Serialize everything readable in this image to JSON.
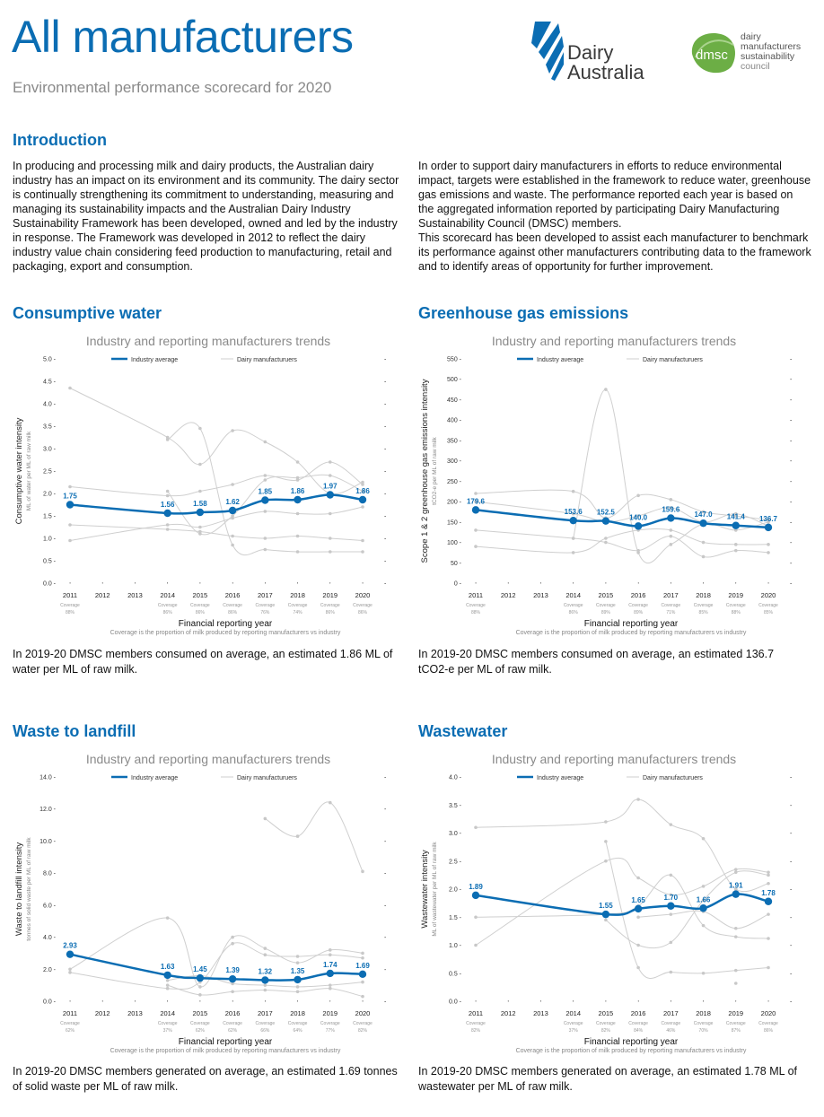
{
  "header": {
    "title": "All manufacturers",
    "subtitle": "Environmental performance scorecard for 2020"
  },
  "logos": {
    "dairy_australia_line1": "Dairy",
    "dairy_australia_line2": "Australia",
    "dmsc_badge": "dmsc",
    "dmsc_line1": "dairy",
    "dmsc_line2": "manufacturers",
    "dmsc_line3": "sustainability",
    "dmsc_line4": "council"
  },
  "intro": {
    "heading": "Introduction",
    "left": "In producing and processing milk and dairy products, the Australian dairy industry has an impact on its environment and its community. The dairy sector is continually strengthening its commitment to understanding, measuring and managing its sustainability impacts and the Australian Dairy Industry Sustainability Framework has been developed, owned and led by the industry in response. The Framework was developed in 2012 to reflect the dairy industry value chain considering feed production to manufacturing, retail and packaging, export and consumption.",
    "right1": "In order to support dairy manufacturers in efforts to reduce environmental impact, targets were established in the framework to reduce water, greenhouse gas emissions and waste. The performance reported each year is based on the aggregated information reported by participating Dairy Manufacturing Sustainability Council (DMSC) members.",
    "right2": "This scorecard has been developed to assist each manufacturer to benchmark its performance against other manufacturers contributing data to the framework and to identify areas of opportunity for further improvement."
  },
  "common": {
    "chart_title": "Industry and reporting manufacturers trends",
    "legend_avg": "Industry average",
    "legend_mfr": "Dairy manufacturuers",
    "xlabel": "Financial reporting year",
    "coverage_word": "Coverage",
    "coverage_note": "Coverage is the proportion of milk produced by reporting manufacturers vs industry",
    "avg_color": "#0b6db3",
    "mfr_color": "#cfcfcf"
  },
  "sections": {
    "water": {
      "heading": "Consumptive water",
      "description": "In 2019-20 DMSC members consumed on average, an estimated 1.86 ML of water per ML of raw milk."
    },
    "ghg": {
      "heading": "Greenhouse gas emissions",
      "description": "In 2019-20 DMSC members consumed on average, an estimated 136.7 tCO2-e per ML of raw milk."
    },
    "waste": {
      "heading": "Waste to landfill",
      "description": "In 2019-20 DMSC members generated on average, an estimated 1.69 tonnes of solid waste per ML of raw milk."
    },
    "wastewater": {
      "heading": "Wastewater",
      "description": "In 2019-20 DMSC members generated on average, an estimated 1.78 ML of wastewater per ML of raw milk."
    }
  },
  "chart_data": [
    {
      "id": "water",
      "type": "line",
      "title": "Industry and reporting manufacturers trends",
      "ylabel": "Consumptive water intensity",
      "ylabel2": "ML of water per ML of raw milk",
      "xlabel": "Financial reporting year",
      "ylim": [
        0,
        5
      ],
      "yticks": [
        0,
        0.5,
        1,
        1.5,
        2,
        2.5,
        3,
        3.5,
        4,
        4.5,
        5
      ],
      "ytick_labels": [
        "0.0",
        "0.5",
        "1.0",
        "1.5",
        "2.0",
        "2.5",
        "3.0",
        "3.5",
        "4.0",
        "4.5",
        "5.0"
      ],
      "x": [
        "2011",
        "2012",
        "2013",
        "2014",
        "2015",
        "2016",
        "2017",
        "2018",
        "2019",
        "2020"
      ],
      "coverage": [
        "88%",
        "",
        "",
        "86%",
        "86%",
        "86%",
        "76%",
        "74%",
        "86%",
        "86%"
      ],
      "average": {
        "name": "Industry average",
        "x_idx": [
          0,
          3,
          4,
          5,
          6,
          7,
          8,
          9
        ],
        "values": [
          1.75,
          1.56,
          1.58,
          1.62,
          1.85,
          1.86,
          1.97,
          1.86
        ],
        "labels": [
          "1.75",
          "1.56",
          "1.58",
          "1.62",
          "1.85",
          "1.86",
          "1.97",
          "1.86"
        ]
      },
      "manufacturers": [
        {
          "x_idx": [
            0,
            3,
            4,
            5,
            6,
            7,
            8,
            9
          ],
          "values": [
            4.35,
            3.25,
            2.65,
            3.4,
            3.15,
            2.7,
            2.0,
            2.25
          ]
        },
        {
          "x_idx": [
            3,
            4,
            5,
            6,
            7,
            8,
            9
          ],
          "values": [
            3.2,
            3.45,
            0.85,
            0.75,
            0.7,
            0.7,
            0.7
          ]
        },
        {
          "x_idx": [
            0,
            3,
            4,
            5,
            6,
            7,
            8,
            9
          ],
          "values": [
            2.15,
            1.95,
            2.05,
            2.2,
            2.4,
            2.3,
            2.7,
            2.2
          ]
        },
        {
          "x_idx": [
            0,
            3,
            4,
            5,
            6,
            7,
            8,
            9
          ],
          "values": [
            1.3,
            1.2,
            1.15,
            1.05,
            1.0,
            1.05,
            1.0,
            0.95
          ]
        },
        {
          "x_idx": [
            0,
            3,
            4,
            5,
            6,
            7,
            8,
            9
          ],
          "values": [
            0.95,
            1.3,
            1.25,
            1.45,
            1.6,
            1.55,
            1.55,
            1.7
          ]
        },
        {
          "x_idx": [
            3,
            4,
            5,
            6,
            7,
            8,
            9
          ],
          "values": [
            2.05,
            1.1,
            1.5,
            2.3,
            2.35,
            2.4,
            2.05
          ]
        }
      ]
    },
    {
      "id": "ghg",
      "type": "line",
      "title": "Industry and reporting manufacturers trends",
      "ylabel": "Scope 1 & 2 greenhouse gas emissions intensity",
      "ylabel2": "tCO2-e per ML of raw milk",
      "xlabel": "Financial reporting year",
      "ylim": [
        0,
        550
      ],
      "yticks": [
        0,
        50,
        100,
        150,
        200,
        250,
        300,
        350,
        400,
        450,
        500,
        550
      ],
      "ytick_labels": [
        "0",
        "50",
        "100",
        "150",
        "200",
        "250",
        "300",
        "350",
        "400",
        "450",
        "500",
        "550"
      ],
      "x": [
        "2011",
        "2012",
        "2013",
        "2014",
        "2015",
        "2016",
        "2017",
        "2018",
        "2019",
        "2020"
      ],
      "coverage": [
        "88%",
        "",
        "",
        "86%",
        "89%",
        "89%",
        "71%",
        "85%",
        "88%",
        "85%"
      ],
      "average": {
        "name": "Industry average",
        "x_idx": [
          0,
          3,
          4,
          5,
          6,
          7,
          8,
          9
        ],
        "values": [
          179.6,
          153.6,
          152.5,
          140.0,
          159.6,
          147.0,
          141.4,
          136.7
        ],
        "labels": [
          "179.6",
          "153.6",
          "152.5",
          "140.0",
          "159.6",
          "147.0",
          "141.4",
          "136.7"
        ]
      },
      "manufacturers": [
        {
          "x_idx": [
            3,
            4,
            5,
            6,
            7,
            8,
            9
          ],
          "values": [
            110,
            475,
            75,
            95,
            145,
            130,
            150
          ]
        },
        {
          "x_idx": [
            0,
            3,
            4,
            5,
            6,
            7,
            8,
            9
          ],
          "values": [
            220,
            225,
            160,
            215,
            205,
            175,
            165,
            155
          ]
        },
        {
          "x_idx": [
            0,
            3,
            4,
            5,
            6,
            7,
            8,
            9
          ],
          "values": [
            90,
            75,
            110,
            130,
            130,
            100,
            95,
            95
          ]
        },
        {
          "x_idx": [
            0,
            3,
            4,
            5,
            6,
            7,
            8,
            9
          ],
          "values": [
            130,
            110,
            100,
            80,
            115,
            65,
            80,
            75
          ]
        },
        {
          "x_idx": [
            0,
            3,
            4,
            5,
            6,
            7,
            8,
            9
          ],
          "values": [
            200,
            170,
            150,
            165,
            185,
            150,
            170,
            140
          ]
        }
      ]
    },
    {
      "id": "waste",
      "type": "line",
      "title": "Industry and reporting manufacturers trends",
      "ylabel": "Waste to landfill intensity",
      "ylabel2": "tonnes of solid waste per ML of raw milk",
      "xlabel": "Financial reporting year",
      "ylim": [
        0,
        14
      ],
      "yticks": [
        0,
        2,
        4,
        6,
        8,
        10,
        12,
        14
      ],
      "ytick_labels": [
        "0.0",
        "2.0",
        "4.0",
        "6.0",
        "8.0",
        "10.0",
        "12.0",
        "14.0"
      ],
      "x": [
        "2011",
        "2012",
        "2013",
        "2014",
        "2015",
        "2016",
        "2017",
        "2018",
        "2019",
        "2020"
      ],
      "coverage": [
        "62%",
        "",
        "",
        "37%",
        "62%",
        "62%",
        "66%",
        "64%",
        "77%",
        "82%"
      ],
      "average": {
        "name": "Industry average",
        "x_idx": [
          0,
          3,
          4,
          5,
          6,
          7,
          8,
          9
        ],
        "values": [
          2.93,
          1.63,
          1.45,
          1.39,
          1.32,
          1.35,
          1.74,
          1.69
        ],
        "labels": [
          "2.93",
          "1.63",
          "1.45",
          "1.39",
          "1.32",
          "1.35",
          "1.74",
          "1.69"
        ]
      },
      "manufacturers": [
        {
          "x_idx": [
            6,
            7,
            8,
            9
          ],
          "values": [
            11.4,
            10.3,
            12.4,
            8.1
          ]
        },
        {
          "x_idx": [
            0,
            3,
            4,
            5,
            6,
            7,
            8,
            9
          ],
          "values": [
            2.0,
            5.2,
            0.9,
            4.0,
            3.3,
            2.4,
            3.2,
            3.0
          ]
        },
        {
          "x_idx": [
            0,
            3,
            4,
            5,
            6,
            7,
            8,
            9
          ],
          "values": [
            1.8,
            0.8,
            1.2,
            3.6,
            2.9,
            2.8,
            2.9,
            2.7
          ]
        },
        {
          "x_idx": [
            3,
            4,
            5,
            6,
            7,
            8,
            9
          ],
          "values": [
            1.0,
            0.4,
            0.6,
            0.7,
            0.6,
            0.8,
            0.3
          ]
        },
        {
          "x_idx": [
            3,
            4,
            5,
            6,
            7,
            8,
            9
          ],
          "values": [
            1.3,
            1.6,
            1.1,
            1.0,
            0.9,
            1.0,
            1.2
          ]
        }
      ]
    },
    {
      "id": "wastewater",
      "type": "line",
      "title": "Industry and reporting manufacturers trends",
      "ylabel": "Wastewater intensity",
      "ylabel2": "ML of wastewater per ML of raw milk",
      "xlabel": "Financial reporting year",
      "ylim": [
        0,
        4
      ],
      "yticks": [
        0,
        0.5,
        1,
        1.5,
        2,
        2.5,
        3,
        3.5,
        4
      ],
      "ytick_labels": [
        "0.0",
        "0.5",
        "1.0",
        "1.5",
        "2.0",
        "2.5",
        "3.0",
        "3.5",
        "4.0"
      ],
      "x": [
        "2011",
        "2012",
        "2013",
        "2014",
        "2015",
        "2016",
        "2017",
        "2018",
        "2019",
        "2020"
      ],
      "coverage": [
        "82%",
        "",
        "",
        "37%",
        "82%",
        "84%",
        "46%",
        "70%",
        "87%",
        "86%"
      ],
      "average": {
        "name": "Industry average",
        "x_idx": [
          0,
          4,
          5,
          6,
          7,
          8,
          9
        ],
        "values": [
          1.89,
          1.55,
          1.65,
          1.7,
          1.66,
          1.91,
          1.78
        ],
        "labels": [
          "1.89",
          "1.55",
          "1.65",
          "1.70",
          "1.66",
          "1.91",
          "1.78"
        ]
      },
      "manufacturers": [
        {
          "x_idx": [
            0,
            4,
            5,
            6,
            7,
            8,
            9
          ],
          "values": [
            3.1,
            3.2,
            3.6,
            3.15,
            2.9,
            2.0,
            2.1
          ]
        },
        {
          "x_idx": [
            0,
            4,
            5,
            6,
            7,
            8,
            9
          ],
          "values": [
            1.0,
            2.5,
            2.2,
            1.9,
            2.05,
            2.35,
            2.3
          ]
        },
        {
          "x_idx": [
            4,
            5,
            6,
            7,
            8,
            9
          ],
          "values": [
            2.85,
            0.6,
            0.52,
            0.5,
            0.55,
            0.6
          ]
        },
        {
          "x_idx": [
            4,
            5,
            6,
            7,
            8,
            9
          ],
          "values": [
            1.45,
            1.0,
            1.05,
            1.8,
            2.3,
            2.25
          ]
        },
        {
          "x_idx": [
            0,
            4,
            5,
            6,
            7,
            8,
            9
          ],
          "values": [
            1.5,
            1.55,
            1.7,
            2.25,
            1.35,
            1.15,
            1.12
          ]
        },
        {
          "x_idx": [
            5,
            6,
            7,
            8,
            9
          ],
          "values": [
            1.5,
            1.55,
            1.6,
            1.3,
            1.55
          ]
        },
        {
          "x_idx": [
            8
          ],
          "values": [
            0.32
          ]
        }
      ]
    }
  ]
}
